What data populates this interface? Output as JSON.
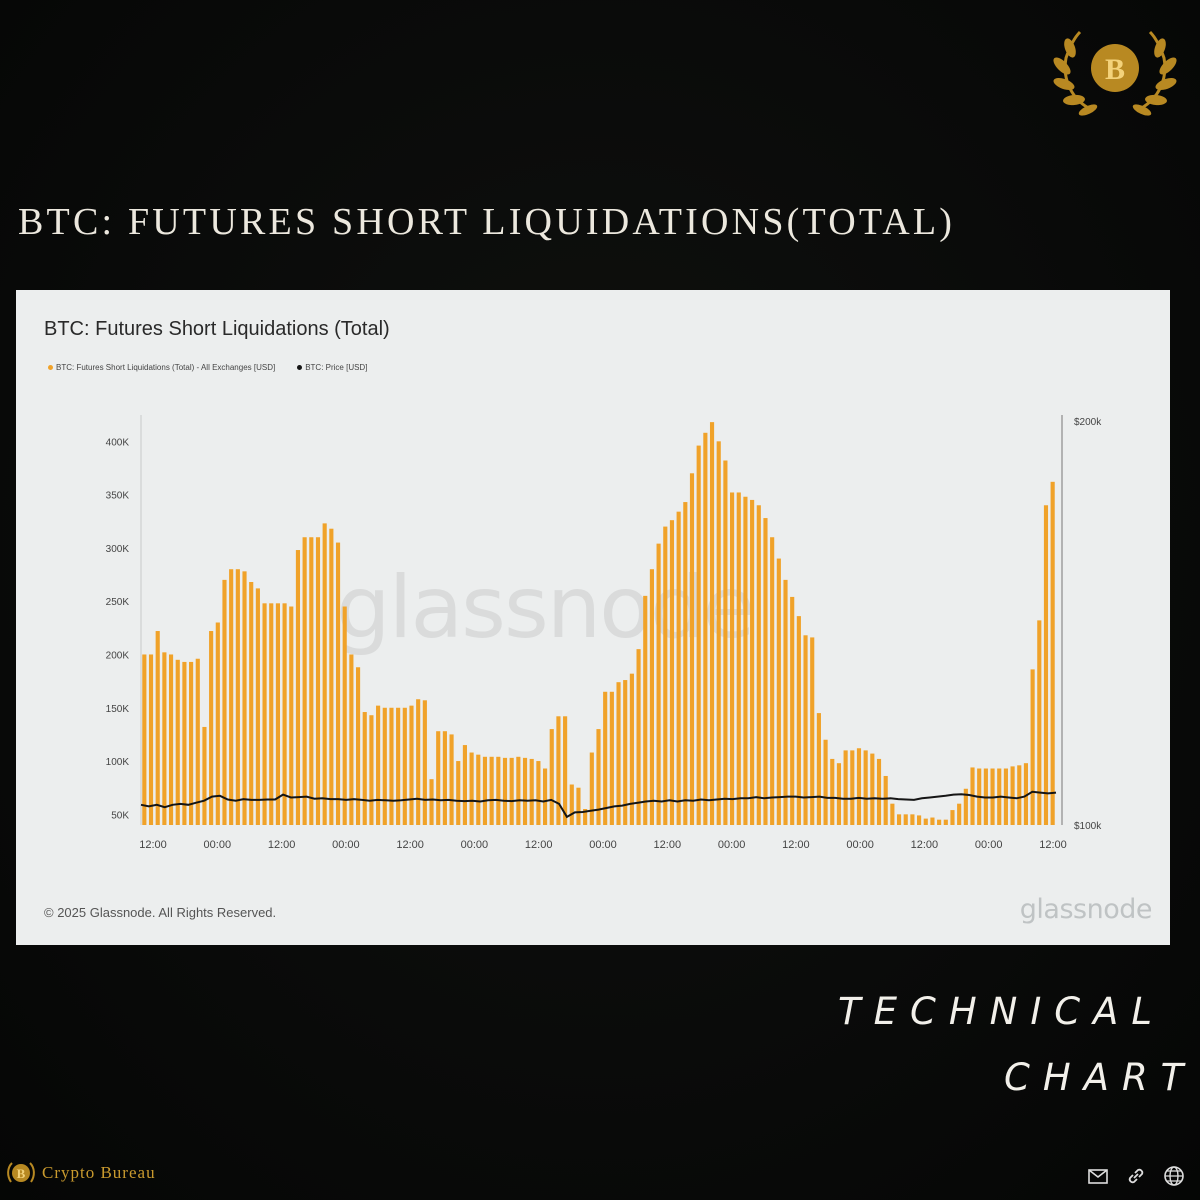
{
  "post": {
    "heading": "BTC: FUTURES SHORT LIQUIDATIONS(TOTAL)",
    "tagline_1": "TECHNICAL",
    "tagline_2": "CHART",
    "brand_name": "Crypto Bureau",
    "logo_letter": "B",
    "icons": [
      "mail-icon",
      "link-icon",
      "globe-icon"
    ]
  },
  "colors": {
    "bar": "#f0a229",
    "price_line": "#151515",
    "panel_bg": "#eceeee",
    "gold": "#c99a2e"
  },
  "chart_data": {
    "type": "bar",
    "title": "BTC: Futures Short Liquidations (Total)",
    "series": [
      {
        "name": "BTC: Futures Short Liquidations (Total) - All Exchanges [USD]",
        "type": "bar",
        "axis": "left",
        "values": [
          200000,
          200000,
          222000,
          202000,
          200000,
          195000,
          193000,
          193000,
          196000,
          132000,
          222000,
          230000,
          270000,
          280000,
          280000,
          278000,
          268000,
          262000,
          248000,
          248000,
          248000,
          248000,
          245000,
          298000,
          310000,
          310000,
          310000,
          323000,
          318000,
          305000,
          245000,
          200000,
          188000,
          146000,
          143000,
          152000,
          150000,
          150000,
          150000,
          150000,
          152000,
          158000,
          157000,
          83000,
          128000,
          128000,
          125000,
          100000,
          115000,
          108000,
          106000,
          104000,
          104000,
          104000,
          103000,
          103000,
          104000,
          103000,
          102000,
          100000,
          93000,
          130000,
          142000,
          142000,
          78000,
          75000,
          55000,
          108000,
          130000,
          165000,
          165000,
          174000,
          176000,
          182000,
          205000,
          255000,
          280000,
          304000,
          320000,
          326000,
          334000,
          343000,
          370000,
          396000,
          408000,
          418000,
          400000,
          382000,
          352000,
          352000,
          348000,
          345000,
          340000,
          328000,
          310000,
          290000,
          270000,
          254000,
          236000,
          218000,
          216000,
          145000,
          120000,
          102000,
          98000,
          110000,
          110000,
          112000,
          110000,
          107000,
          102000,
          86000,
          60000,
          50000,
          50000,
          50000,
          49000,
          46000,
          47000,
          45000,
          45000,
          54000,
          60000,
          74000,
          94000,
          93000,
          93000,
          93000,
          93000,
          93000,
          95000,
          96000,
          98000,
          186000,
          232000,
          340000,
          362000
        ]
      },
      {
        "name": "BTC: Price [USD]",
        "type": "line",
        "axis": "right",
        "values": [
          105000,
          104600,
          105000,
          104400,
          105000,
          105200,
          105000,
          105500,
          106000,
          107000,
          107200,
          106300,
          106000,
          106400,
          106200,
          106200,
          106300,
          106300,
          107500,
          106800,
          106900,
          107000,
          106500,
          106600,
          106400,
          106400,
          106200,
          106400,
          106200,
          106000,
          106200,
          106100,
          106000,
          106100,
          106300,
          106500,
          106200,
          106300,
          106100,
          106200,
          106000,
          105900,
          106000,
          105800,
          106100,
          106200,
          106000,
          105900,
          106100,
          106000,
          106100,
          105800,
          106200,
          105200,
          102000,
          103100,
          103200,
          103500,
          103800,
          104200,
          104600,
          104800,
          105200,
          105500,
          105800,
          106000,
          105800,
          106100,
          105800,
          106100,
          106000,
          106300,
          106100,
          106300,
          106500,
          106400,
          106600,
          106600,
          106900,
          106600,
          106800,
          106900,
          107000,
          107000,
          106800,
          106900,
          107000,
          106700,
          106700,
          106500,
          106500,
          106700,
          106500,
          106600,
          106500,
          106600,
          106400,
          106300,
          106200,
          106600,
          106800,
          107000,
          107200,
          107500,
          107600,
          107400,
          107000,
          106800,
          106800,
          107000,
          106800,
          106600,
          107000,
          108200,
          108000,
          107800,
          108000
        ]
      }
    ],
    "x_tick_labels": [
      "12:00",
      "00:00",
      "12:00",
      "00:00",
      "12:00",
      "00:00",
      "12:00",
      "00:00",
      "12:00",
      "00:00",
      "12:00",
      "00:00",
      "12:00",
      "00:00",
      "12:00"
    ],
    "y_left": {
      "ticks": [
        "50K",
        "100K",
        "150K",
        "200K",
        "250K",
        "300K",
        "350K",
        "400K"
      ],
      "min": 40000,
      "max": 420000
    },
    "y_right": {
      "ticks": [
        "$100k",
        "$200k"
      ],
      "min": 100000,
      "max": 200000
    },
    "legend_position": "top-left",
    "grid": false,
    "watermark": "glassnode",
    "footer_left": "© 2025 Glassnode. All Rights Reserved.",
    "footer_right": "glassnode"
  }
}
